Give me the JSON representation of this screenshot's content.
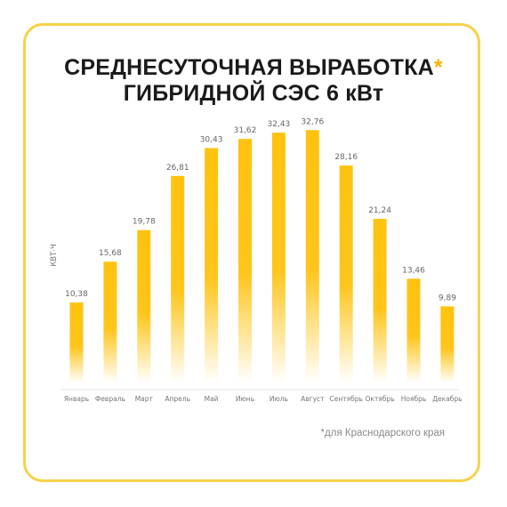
{
  "title_line1": "СРЕДНЕСУТОЧНАЯ ВЫРАБОТКА",
  "title_star": "*",
  "title_line2": "ГИБРИДНОЙ СЭС 6 кВт",
  "footnote": "*для Краснодарского края",
  "colors": {
    "bar": "#ffc20e",
    "border": "#f7d24a",
    "accent": "#f5b400"
  },
  "chart_data": {
    "type": "bar",
    "title": "СРЕДНЕСУТОЧНАЯ ВЫРАБОТКА* ГИБРИДНОЙ СЭС 6 кВт",
    "ylabel": "КВТ·Ч",
    "xlabel": "",
    "categories": [
      "Январь",
      "Февраль",
      "Март",
      "Апрель",
      "Май",
      "Июнь",
      "Июль",
      "Август",
      "Сентябрь",
      "Октябрь",
      "Ноябрь",
      "Декабрь"
    ],
    "value_labels": [
      "10,38",
      "15,68",
      "19,78",
      "26,81",
      "30,43",
      "31,62",
      "32,43",
      "32,76",
      "28,16",
      "21,24",
      "13,46",
      "9,89"
    ],
    "values": [
      10.38,
      15.68,
      19.78,
      26.81,
      30.43,
      31.62,
      32.43,
      32.76,
      28.16,
      21.24,
      13.46,
      9.89
    ],
    "grid": false,
    "bar_fill": "gradient fading to transparent at bottom"
  }
}
